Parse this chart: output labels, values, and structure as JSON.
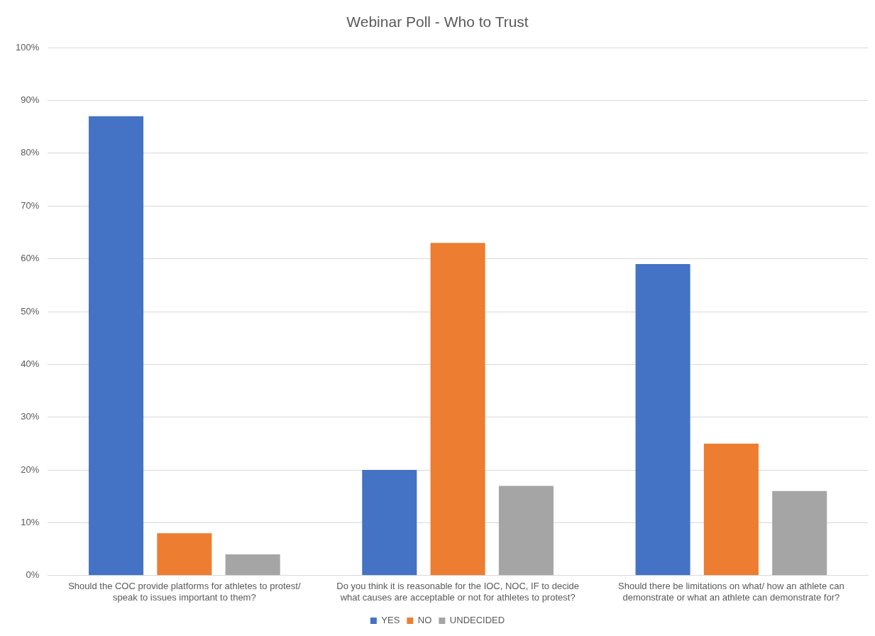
{
  "chart_data": {
    "type": "bar",
    "title": "Webinar Poll - Who to Trust",
    "categories": [
      "Should the COC provide platforms for athletes to protest/ speak to issues important to them?",
      "Do you think it is reasonable for the IOC, NOC, IF to decide what causes are acceptable or not for athletes to protest?",
      "Should there be limitations on what/ how an athlete can demonstrate or what an athlete can demonstrate for?"
    ],
    "series": [
      {
        "name": "YES",
        "color": "#4472c4",
        "values": [
          87,
          20,
          59
        ]
      },
      {
        "name": "NO",
        "color": "#ed7d31",
        "values": [
          8,
          63,
          25
        ]
      },
      {
        "name": "UNDECIDED",
        "color": "#a5a5a5",
        "values": [
          4,
          17,
          16
        ]
      }
    ],
    "ylim": [
      0,
      100
    ],
    "yticks": [
      {
        "value": 0,
        "label": "0%"
      },
      {
        "value": 10,
        "label": "10%"
      },
      {
        "value": 20,
        "label": "20%"
      },
      {
        "value": 30,
        "label": "30%"
      },
      {
        "value": 40,
        "label": "40%"
      },
      {
        "value": 50,
        "label": "50%"
      },
      {
        "value": 60,
        "label": "60%"
      },
      {
        "value": 70,
        "label": "70%"
      },
      {
        "value": 80,
        "label": "80%"
      },
      {
        "value": 90,
        "label": "90%"
      },
      {
        "value": 100,
        "label": "100%"
      }
    ],
    "grid": "y",
    "legend": "bottom"
  }
}
